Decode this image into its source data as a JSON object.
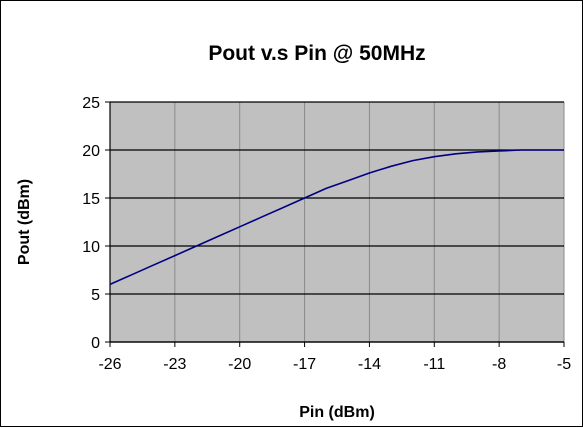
{
  "chart_data": {
    "type": "line",
    "title": "Pout v.s Pin @ 50MHz",
    "xlabel": "Pin (dBm)",
    "ylabel": "Pout (dBm)",
    "xlim": [
      -26,
      -5
    ],
    "ylim": [
      0,
      25
    ],
    "x_ticks": [
      -26,
      -23,
      -20,
      -17,
      -14,
      -11,
      -8,
      -5
    ],
    "y_ticks": [
      0,
      5,
      10,
      15,
      20,
      25
    ],
    "grid": true,
    "legend": "none",
    "plot_background": "#c0c0c0",
    "series": [
      {
        "color": "#000080",
        "x": [
          -26,
          -25,
          -24,
          -23,
          -22,
          -21,
          -20,
          -19,
          -18,
          -17,
          -16,
          -15,
          -14,
          -13,
          -12,
          -11,
          -10,
          -9,
          -8,
          -7,
          -6,
          -5
        ],
        "y": [
          6.0,
          7.0,
          8.0,
          9.0,
          10.0,
          11.0,
          12.0,
          13.0,
          14.0,
          15.0,
          16.0,
          16.8,
          17.6,
          18.3,
          18.9,
          19.3,
          19.6,
          19.8,
          19.9,
          20.0,
          20.0,
          20.0
        ]
      }
    ]
  }
}
